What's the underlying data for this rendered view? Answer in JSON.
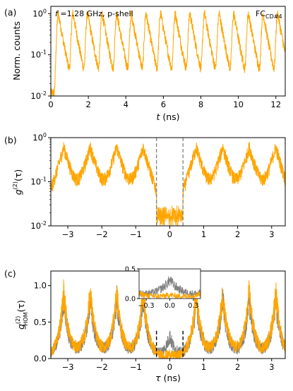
{
  "chart_data": [
    {
      "panel": "(a)",
      "type": "line",
      "title": "",
      "annotation": "f = 1.28 GHz, p-shell",
      "corner_label": "FC_CD#4",
      "xlabel": "t (ns)",
      "ylabel": "Norm. counts",
      "xlim": [
        0,
        12.5
      ],
      "ylim": [
        0.01,
        1.5
      ],
      "yscale": "log",
      "xticks": [
        "0",
        "2",
        "4",
        "6",
        "8",
        "10",
        "12"
      ],
      "yticks": [
        "10^0",
        "10^-1",
        "10^-2"
      ],
      "color": "#FFA500",
      "peak_period_ns": 0.78,
      "peak_times_ns": [
        0.4,
        1.18,
        1.96,
        2.74,
        3.52,
        4.3,
        5.08,
        5.86,
        6.64,
        7.42,
        8.2,
        8.98,
        9.76,
        10.54,
        11.32,
        12.1
      ],
      "peak_value": 1.0,
      "min_value": 0.012
    },
    {
      "panel": "(b)",
      "type": "line",
      "title": "",
      "xlabel": "",
      "ylabel": "g^(2)(τ)",
      "xlim": [
        -3.5,
        3.4
      ],
      "ylim": [
        0.01,
        1.0
      ],
      "yscale": "log",
      "xticks": [
        "−3",
        "−2",
        "−1",
        "0",
        "1",
        "2",
        "3"
      ],
      "yticks": [
        "10^0",
        "10^-1",
        "10^-2"
      ],
      "color": "#FFA500",
      "dashed_lines_x": [
        -0.39,
        0.39
      ],
      "dashed_color": "#808080",
      "peak_centers_ns": [
        -3.12,
        -2.34,
        -1.56,
        -0.78,
        0.78,
        1.56,
        2.34,
        3.12
      ],
      "peak_value": 0.6,
      "floor_value": 0.012
    },
    {
      "panel": "(c)",
      "type": "line",
      "title": "",
      "xlabel": "τ (ns)",
      "ylabel": "g^(2)_HOM(τ)",
      "xlim": [
        -3.5,
        3.4
      ],
      "ylim": [
        0.0,
        1.2
      ],
      "yscale": "linear",
      "xticks": [
        "−3",
        "−2",
        "−1",
        "0",
        "1",
        "2",
        "3"
      ],
      "yticks": [
        "0.0",
        "0.5",
        "1.0"
      ],
      "series": [
        {
          "color": "#808080",
          "peak_value": 0.8,
          "center_value": 0.3
        },
        {
          "color": "#FFA500",
          "peak_value": 0.9,
          "center_value": 0.05
        }
      ],
      "peak_centers_ns": [
        -3.12,
        -2.34,
        -1.56,
        -0.78,
        0.78,
        1.56,
        2.34,
        3.12
      ],
      "dashed_lines_x": [
        -0.39,
        0.39
      ],
      "dashed_color": "#000000",
      "inset": {
        "xlim": [
          -0.39,
          0.39
        ],
        "ylim": [
          0.0,
          0.5
        ],
        "xticks": [
          "−0.3",
          "0.0",
          "0.3"
        ],
        "yticks": [
          "0.0",
          "0.5"
        ]
      }
    }
  ]
}
